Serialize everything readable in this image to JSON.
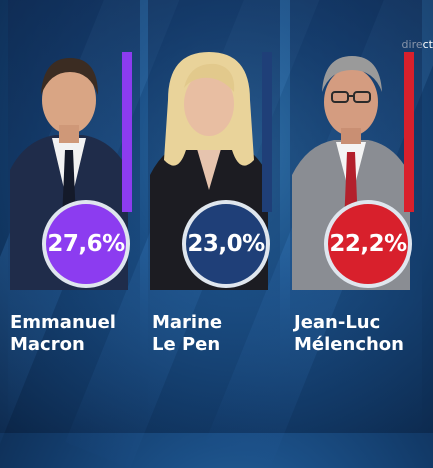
{
  "channel_logo": "direct",
  "candidates": [
    {
      "first_name": "Emmanuel",
      "last_name": "Macron",
      "percent": "27,6%",
      "color": "#8c3cf0"
    },
    {
      "first_name": "Marine",
      "last_name": "Le Pen",
      "percent": "23,0%",
      "color": "#1f3f78"
    },
    {
      "first_name": "Jean-Luc",
      "last_name": "Mélenchon",
      "percent": "22,2%",
      "color": "#d8202c"
    }
  ]
}
